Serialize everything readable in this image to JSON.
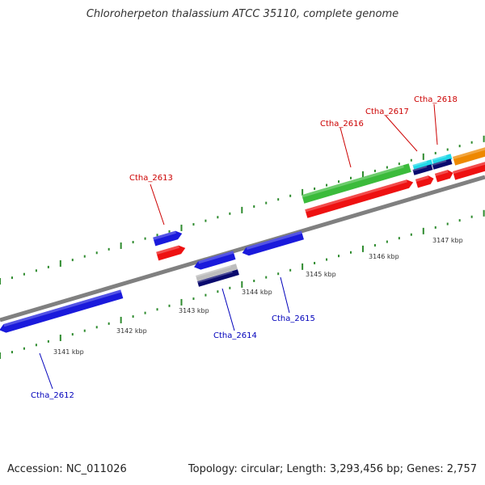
{
  "title": "Chloroherpeton thalassium ATCC 35110, complete genome",
  "footer": {
    "accession": "Accession: NC_011026",
    "stats": "Topology: circular; Length: 3,293,456 bp; Genes: 2,757"
  },
  "colors": {
    "backbone": "#808080",
    "tick": "#2e8b2e",
    "forward_label": "#cc0000",
    "reverse_label": "#0000bb",
    "blue": "#1a1adc",
    "red": "#ee1111",
    "green": "#3bbb3b",
    "cyan": "#22d8e8",
    "navy": "#0a0a6e",
    "orange": "#ee8800",
    "gray": "#bdbdbd"
  },
  "scale_labels": [
    "3141 kbp",
    "3142 kbp",
    "3143 kbp",
    "3144 kbp",
    "3145 kbp",
    "3146 kbp",
    "3147 kbp"
  ],
  "gene_labels": {
    "forward": [
      "Ctha_2613",
      "Ctha_2616",
      "Ctha_2617",
      "Ctha_2618"
    ],
    "reverse": [
      "Ctha_2612",
      "Ctha_2614",
      "Ctha_2615"
    ]
  }
}
